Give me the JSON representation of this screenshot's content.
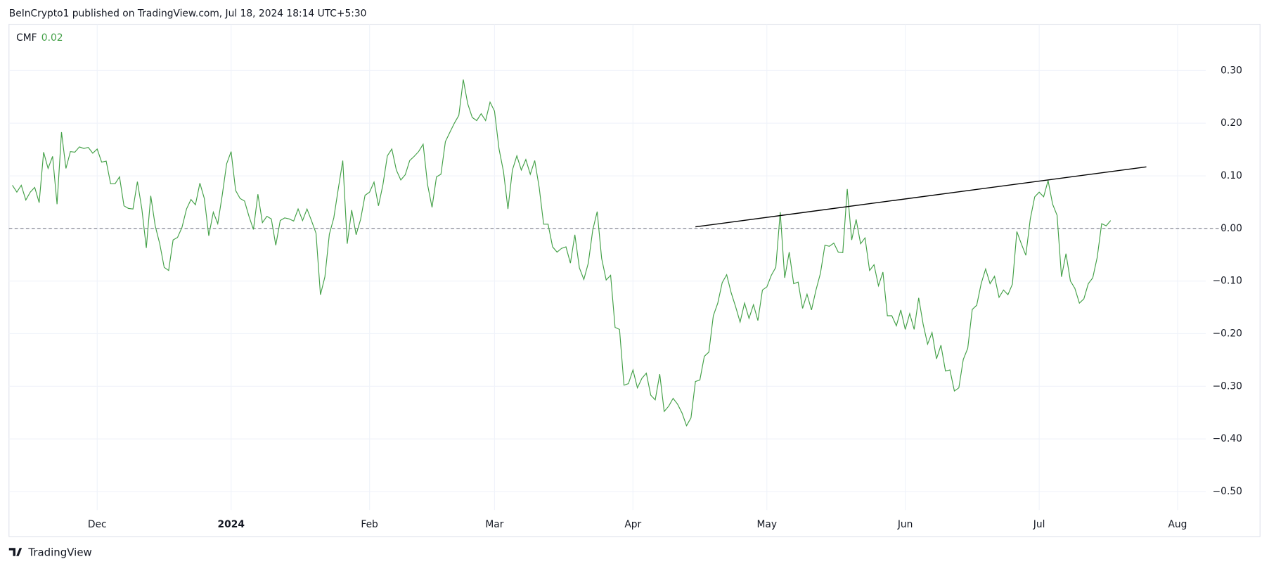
{
  "header": "BeInCrypto1 published on TradingView.com, Jul 18, 2024 18:14 UTC+5:30",
  "footer": "TradingView",
  "chart_data": {
    "type": "line",
    "categories": [
      null,
      null,
      null,
      null,
      null,
      null,
      null,
      null,
      null,
      null,
      null,
      null,
      null,
      null,
      null,
      null,
      null,
      null,
      null,
      "Dec",
      null,
      null,
      null,
      null,
      null,
      null,
      null,
      null,
      null,
      null,
      null,
      null,
      null,
      null,
      null,
      null,
      null,
      null,
      null,
      null,
      null,
      null,
      null,
      null,
      null,
      null,
      null,
      null,
      null,
      "2024",
      null,
      null,
      null,
      null,
      null,
      null,
      null,
      null,
      null,
      null,
      null,
      null,
      null,
      null,
      null,
      null,
      null,
      null,
      null,
      null,
      null,
      null,
      null,
      null,
      null,
      null,
      null,
      null,
      null,
      null,
      "Feb",
      null,
      null,
      null,
      null,
      null,
      null,
      null,
      null,
      null,
      null,
      null,
      null,
      null,
      null,
      null,
      null,
      null,
      null,
      null,
      null,
      null,
      null,
      null,
      null,
      null,
      null,
      null,
      "Mar",
      null,
      null,
      null,
      null,
      null,
      null,
      null,
      null,
      null,
      null,
      null,
      null,
      null,
      null,
      null,
      null,
      null,
      null,
      null,
      null,
      null,
      null,
      null,
      null,
      null,
      null,
      null,
      null,
      null,
      null,
      "Apr",
      null,
      null,
      null,
      null,
      null,
      null,
      null,
      null,
      null,
      null,
      null,
      null,
      null,
      null,
      null,
      null,
      null,
      null,
      null,
      null,
      null,
      null,
      null,
      null,
      null,
      null,
      null,
      null,
      null,
      "May",
      null,
      null,
      null,
      null,
      null,
      null,
      null,
      null,
      null,
      null,
      null,
      null,
      null,
      null,
      null,
      null,
      null,
      null,
      null,
      null,
      null,
      null,
      null,
      null,
      null,
      null,
      null,
      null,
      null,
      null,
      "Jun",
      null,
      null,
      null,
      null,
      null,
      null,
      null,
      null,
      null,
      null,
      null,
      null,
      null,
      null,
      null,
      null,
      null,
      null,
      null,
      null,
      null,
      null,
      null,
      null,
      null,
      null,
      null,
      null,
      null,
      "Jul",
      null,
      null,
      null,
      null,
      null,
      null,
      null,
      null,
      null,
      null,
      null,
      null,
      null,
      null,
      null,
      null,
      null,
      null,
      null,
      null,
      null,
      null,
      null,
      null,
      null,
      null,
      null,
      null,
      null,
      null,
      "Aug",
      null,
      null,
      null,
      null,
      null,
      null
    ],
    "series": [
      {
        "name": "CMF",
        "color": "#43a047",
        "last_value_label": "0.02",
        "values": [
          0.082,
          0.069,
          0.082,
          0.054,
          0.069,
          0.078,
          0.049,
          0.145,
          0.114,
          0.137,
          0.046,
          0.183,
          0.114,
          0.146,
          0.145,
          0.155,
          0.152,
          0.154,
          0.143,
          0.151,
          0.126,
          0.128,
          0.085,
          0.085,
          0.098,
          0.043,
          0.038,
          0.037,
          0.089,
          0.037,
          -0.037,
          0.062,
          0.005,
          -0.029,
          -0.074,
          -0.08,
          -0.022,
          -0.017,
          0.002,
          0.037,
          0.055,
          0.045,
          0.086,
          0.057,
          -0.014,
          0.031,
          0.009,
          0.063,
          0.123,
          0.146,
          0.072,
          0.057,
          0.052,
          0.023,
          -0.002,
          0.065,
          0.011,
          0.023,
          0.018,
          -0.032,
          0.015,
          0.02,
          0.018,
          0.014,
          0.037,
          0.015,
          0.037,
          0.015,
          -0.009,
          -0.126,
          -0.092,
          -0.011,
          0.02,
          0.075,
          0.129,
          -0.029,
          0.035,
          -0.012,
          0.017,
          0.063,
          0.069,
          0.088,
          0.043,
          0.083,
          0.138,
          0.151,
          0.111,
          0.092,
          0.102,
          0.129,
          0.137,
          0.146,
          0.16,
          0.083,
          0.04,
          0.098,
          0.103,
          0.165,
          0.183,
          0.2,
          0.215,
          0.283,
          0.237,
          0.211,
          0.205,
          0.218,
          0.205,
          0.24,
          0.223,
          0.151,
          0.108,
          0.037,
          0.111,
          0.138,
          0.111,
          0.131,
          0.103,
          0.129,
          0.078,
          0.008,
          0.008,
          -0.035,
          -0.045,
          -0.038,
          -0.035,
          -0.066,
          -0.012,
          -0.075,
          -0.097,
          -0.066,
          -0.003,
          0.032,
          -0.057,
          -0.098,
          -0.089,
          -0.188,
          -0.192,
          -0.298,
          -0.295,
          -0.269,
          -0.303,
          -0.285,
          -0.275,
          -0.317,
          -0.326,
          -0.277,
          -0.348,
          -0.338,
          -0.323,
          -0.334,
          -0.351,
          -0.375,
          -0.36,
          -0.291,
          -0.288,
          -0.243,
          -0.235,
          -0.166,
          -0.142,
          -0.103,
          -0.088,
          -0.122,
          -0.149,
          -0.178,
          -0.142,
          -0.171,
          -0.145,
          -0.175,
          -0.117,
          -0.111,
          -0.089,
          -0.074,
          0.031,
          -0.094,
          -0.045,
          -0.105,
          -0.102,
          -0.152,
          -0.125,
          -0.155,
          -0.117,
          -0.085,
          -0.032,
          -0.034,
          -0.028,
          -0.045,
          -0.046,
          0.075,
          -0.022,
          0.017,
          -0.029,
          -0.018,
          -0.08,
          -0.069,
          -0.109,
          -0.083,
          -0.166,
          -0.166,
          -0.185,
          -0.155,
          -0.192,
          -0.162,
          -0.192,
          -0.132,
          -0.182,
          -0.22,
          -0.198,
          -0.248,
          -0.222,
          -0.271,
          -0.269,
          -0.309,
          -0.303,
          -0.249,
          -0.228,
          -0.154,
          -0.146,
          -0.105,
          -0.077,
          -0.105,
          -0.091,
          -0.131,
          -0.117,
          -0.126,
          -0.106,
          -0.006,
          -0.029,
          -0.051,
          0.018,
          0.06,
          0.069,
          0.06,
          0.091,
          0.046,
          0.025,
          -0.092,
          -0.048,
          -0.1,
          -0.114,
          -0.142,
          -0.134,
          -0.105,
          -0.094,
          -0.055,
          0.009,
          0.005,
          0.015,
          null,
          null,
          null,
          null,
          null,
          null,
          null,
          null,
          null,
          null,
          null,
          null,
          null,
          null,
          null,
          null,
          null,
          null,
          null,
          null,
          null
        ]
      }
    ],
    "trendline": {
      "from": {
        "x": 153,
        "y": 0.003
      },
      "to": {
        "x": 254,
        "y": 0.117
      },
      "color": "#000000"
    },
    "baseline": 0,
    "ylim": [
      -0.535,
      0.388
    ],
    "yticks": [
      {
        "value": 0.3,
        "label": "0.30"
      },
      {
        "value": 0.2,
        "label": "0.20"
      },
      {
        "value": 0.1,
        "label": "0.10"
      },
      {
        "value": 0,
        "label": "0.00"
      },
      {
        "value": -0.1,
        "label": "−0.10"
      },
      {
        "value": -0.2,
        "label": "−0.20"
      },
      {
        "value": -0.3,
        "label": "−0.30"
      },
      {
        "value": -0.4,
        "label": "−0.40"
      },
      {
        "value": -0.5,
        "label": "−0.50"
      }
    ],
    "grid": true
  }
}
